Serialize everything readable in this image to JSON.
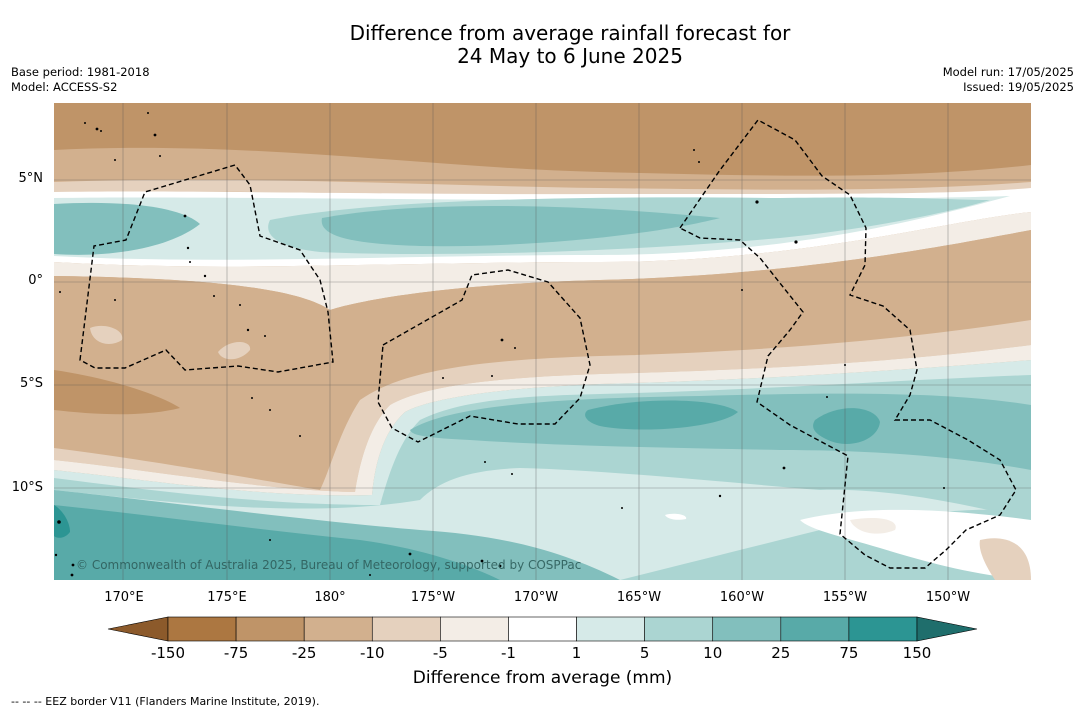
{
  "title_line1": "Difference from average rainfall forecast for",
  "title_line2": "24 May to 6 June 2025",
  "meta": {
    "base_period": "Base period: 1981-2018",
    "model": "Model: ACCESS-S2",
    "model_run": "Model run: 17/05/2025",
    "issued": "Issued: 19/05/2025"
  },
  "lat_labels": [
    "5°N",
    "0°",
    "5°S",
    "10°S"
  ],
  "lon_labels": [
    "170°E",
    "175°E",
    "180°",
    "175°W",
    "170°W",
    "165°W",
    "160°W",
    "155°W",
    "150°W"
  ],
  "copyright": "© Commonwealth of Australia 2025, Bureau of Meteorology, supported by COSPPac",
  "colorbar": {
    "title": "Difference from average (mm)",
    "ticks": [
      "-150",
      "-75",
      "-25",
      "-10",
      "-5",
      "-1",
      "1",
      "5",
      "10",
      "25",
      "75",
      "150"
    ],
    "colors": [
      "#8c5a2b",
      "#ac7741",
      "#bf9468",
      "#d2b08e",
      "#e5d1be",
      "#f3ede6",
      "#ffffff",
      "#d6eae8",
      "#abd5d2",
      "#82bfbd",
      "#58aaa8",
      "#2c9593",
      "#1f6e6c"
    ]
  },
  "footer": "--  --  -- EEZ border V11 (Flanders Marine Institute, 2019)."
}
